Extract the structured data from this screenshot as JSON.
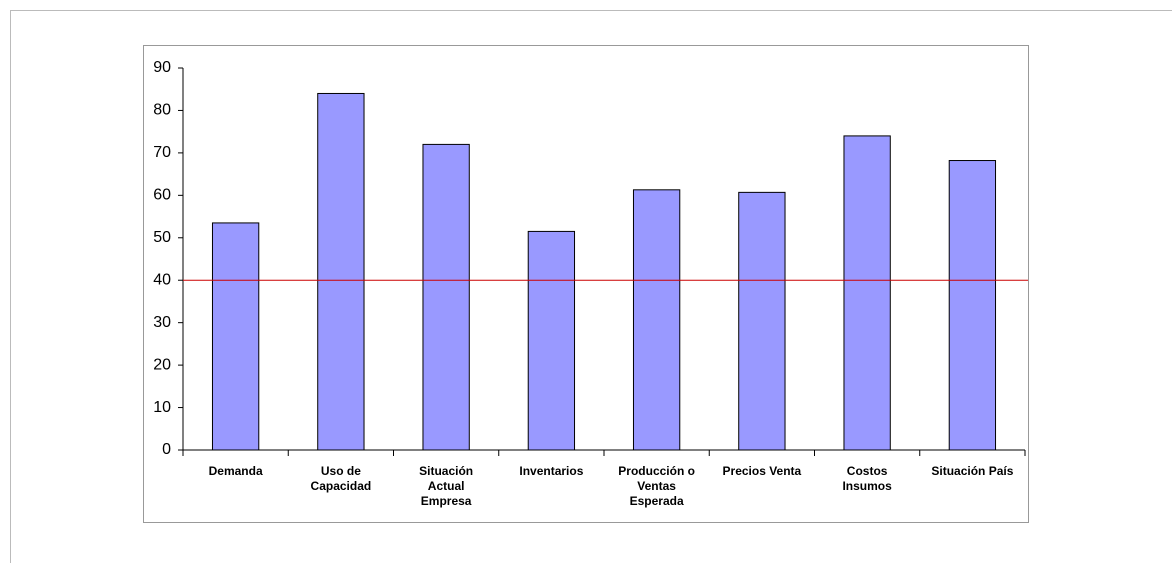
{
  "chart_data": {
    "type": "bar",
    "categories": [
      "Demanda",
      "Uso de Capacidad",
      "Situación Actual Empresa",
      "Inventarios",
      "Producción o Ventas Esperada",
      "Precios Venta",
      "Costos Insumos",
      "Situación País"
    ],
    "values": [
      53.5,
      84,
      72,
      51.5,
      61.3,
      60.7,
      74,
      68.2
    ],
    "color": "#9999ff",
    "ylim": [
      0,
      90
    ],
    "yticks": [
      0,
      10,
      20,
      30,
      40,
      50,
      60,
      70,
      80,
      90
    ],
    "reference_line": {
      "value": 40,
      "color": "#cc0000"
    }
  }
}
